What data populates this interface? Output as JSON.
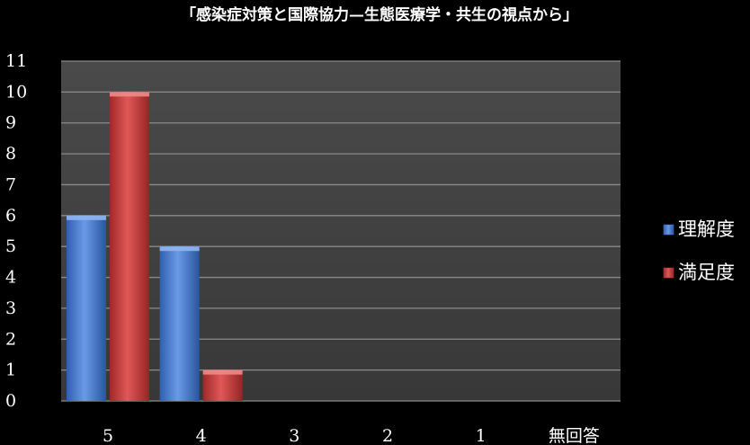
{
  "chart_data": {
    "type": "bar",
    "title": "「感染症対策と国際協力—生態医療学・共生の視点から」",
    "xlabel": "",
    "ylabel": "",
    "categories": [
      "5",
      "4",
      "3",
      "2",
      "1",
      "無回答"
    ],
    "series": [
      {
        "name": "理解度",
        "values": [
          6,
          5,
          0,
          0,
          0,
          0
        ],
        "color": "#4a7fd4"
      },
      {
        "name": "満足度",
        "values": [
          10,
          1,
          0,
          0,
          0,
          0
        ],
        "color": "#c83a3a"
      }
    ],
    "ylim": [
      0,
      11
    ],
    "yticks": [
      0,
      1,
      2,
      3,
      4,
      5,
      6,
      7,
      8,
      9,
      10,
      11
    ],
    "grid": true,
    "legend": "right",
    "plot_background": "#3f3f3f",
    "gridline_color": "#8a8a8a"
  }
}
